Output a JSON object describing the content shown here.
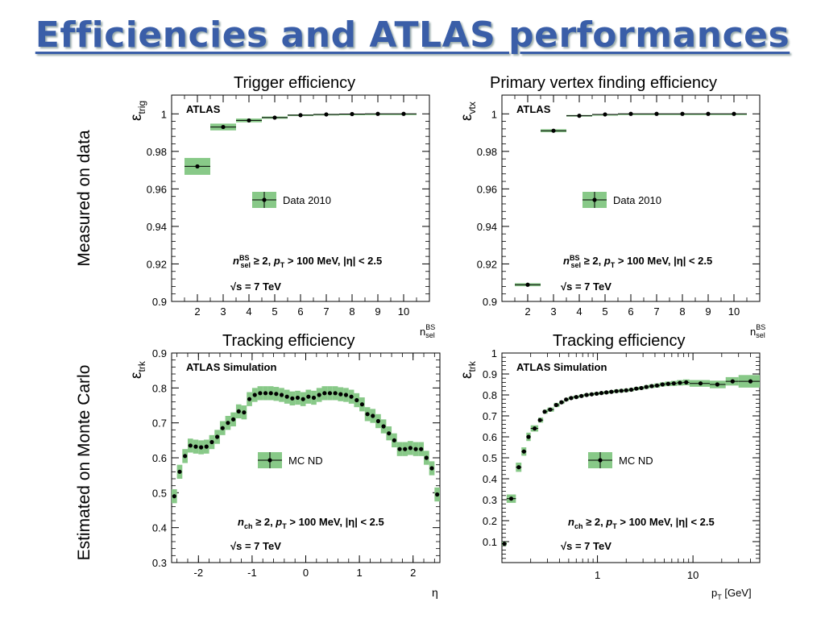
{
  "slide": {
    "title": "Efficiencies and ATLAS performances",
    "row_labels": [
      "Measured on data",
      "Estimated on Monte Carlo"
    ],
    "panel_titles": [
      "Trigger efficiency",
      "Primary vertex  finding efficiency",
      "Tracking efficiency",
      "Tracking efficiency"
    ]
  },
  "colors": {
    "band": "#88c988",
    "title": "#3a5ea8"
  },
  "chart_data": [
    {
      "type": "scatter",
      "title": "Trigger efficiency",
      "ylabel": "ε_trig",
      "xlabel": "n_sel^BS",
      "stamp": "ATLAS",
      "legend": "Data 2010",
      "legend_position": "center",
      "cuts": "n_sel^BS ≥ 2, p_T > 100 MeV, |η| < 2.5",
      "energy": "√s = 7 TeV",
      "xlim": [
        1,
        11
      ],
      "ylim": [
        0.9,
        1.01
      ],
      "xticks": [
        2,
        3,
        4,
        5,
        6,
        7,
        8,
        9,
        10
      ],
      "yticks": [
        0.9,
        0.92,
        0.94,
        0.96,
        0.98,
        1
      ],
      "ytick_labels": [
        "0.9",
        "0.92",
        "0.94",
        "0.96",
        "0.98",
        "1"
      ],
      "points": [
        {
          "x": 2,
          "xlo": 1.5,
          "xhi": 2.5,
          "y": 0.972,
          "band": 0.0045
        },
        {
          "x": 3,
          "xlo": 2.5,
          "xhi": 3.5,
          "y": 0.993,
          "band": 0.0018
        },
        {
          "x": 4,
          "xlo": 3.5,
          "xhi": 4.5,
          "y": 0.9965,
          "band": 0.001
        },
        {
          "x": 5,
          "xlo": 4.5,
          "xhi": 5.5,
          "y": 0.998,
          "band": 0.0006
        },
        {
          "x": 6,
          "xlo": 5.5,
          "xhi": 6.5,
          "y": 0.9993,
          "band": 0.0004
        },
        {
          "x": 7,
          "xlo": 6.5,
          "xhi": 7.5,
          "y": 0.9997,
          "band": 0.0003
        },
        {
          "x": 8,
          "xlo": 7.5,
          "xhi": 8.5,
          "y": 0.9999,
          "band": 0.0002
        },
        {
          "x": 9,
          "xlo": 8.5,
          "xhi": 9.5,
          "y": 1.0,
          "band": 0.0002
        },
        {
          "x": 10,
          "xlo": 9.5,
          "xhi": 10.5,
          "y": 1.0,
          "band": 0.0002
        }
      ]
    },
    {
      "type": "scatter",
      "title": "Primary vertex  finding efficiency",
      "ylabel": "ε_vtx",
      "xlabel": "n_sel^BS",
      "stamp": "ATLAS",
      "legend": "Data 2010",
      "legend_position": "center",
      "cuts": "n_sel^BS ≥ 2, p_T > 100 MeV, |η| < 2.5",
      "energy": "√s = 7 TeV",
      "xlim": [
        1,
        11
      ],
      "ylim": [
        0.9,
        1.01
      ],
      "xticks": [
        2,
        3,
        4,
        5,
        6,
        7,
        8,
        9,
        10
      ],
      "yticks": [
        0.9,
        0.92,
        0.94,
        0.96,
        0.98,
        1
      ],
      "ytick_labels": [
        "0.9",
        "0.92",
        "0.94",
        "0.96",
        "0.98",
        "1"
      ],
      "points": [
        {
          "x": 2,
          "xlo": 1.5,
          "xhi": 2.5,
          "y": 0.9089,
          "band": 0.0008
        },
        {
          "x": 3,
          "xlo": 2.5,
          "xhi": 3.5,
          "y": 0.991,
          "band": 0.0008
        },
        {
          "x": 4,
          "xlo": 3.5,
          "xhi": 4.5,
          "y": 0.999,
          "band": 0.0004
        },
        {
          "x": 5,
          "xlo": 4.5,
          "xhi": 5.5,
          "y": 0.9997,
          "band": 0.0002
        },
        {
          "x": 6,
          "xlo": 5.5,
          "xhi": 6.5,
          "y": 1.0,
          "band": 0.0002
        },
        {
          "x": 7,
          "xlo": 6.5,
          "xhi": 7.5,
          "y": 1.0,
          "band": 0.0002
        },
        {
          "x": 8,
          "xlo": 7.5,
          "xhi": 8.5,
          "y": 1.0,
          "band": 0.0002
        },
        {
          "x": 9,
          "xlo": 8.5,
          "xhi": 9.5,
          "y": 1.0,
          "band": 0.0002
        },
        {
          "x": 10,
          "xlo": 9.5,
          "xhi": 10.5,
          "y": 1.0,
          "band": 0.0002
        }
      ]
    },
    {
      "type": "scatter",
      "title": "Tracking efficiency",
      "ylabel": "ε_trk",
      "xlabel": "η",
      "stamp": "ATLAS Simulation",
      "legend": "MC ND",
      "legend_position": "center",
      "cuts": "n_ch ≥ 2, p_T > 100 MeV, |η| < 2.5",
      "energy": "√s = 7 TeV",
      "xlim": [
        -2.5,
        2.5
      ],
      "ylim": [
        0.3,
        0.9
      ],
      "xticks": [
        -2,
        -1,
        0,
        1,
        2
      ],
      "yticks": [
        0.3,
        0.4,
        0.5,
        0.6,
        0.7,
        0.8,
        0.9
      ],
      "ytick_labels": [
        "0.3",
        "0.4",
        "0.5",
        "0.6",
        "0.7",
        "0.8",
        "0.9"
      ],
      "bin_width": 0.1,
      "band_half_height": 0.02,
      "x": [
        -2.45,
        -2.35,
        -2.25,
        -2.15,
        -2.05,
        -1.95,
        -1.85,
        -1.75,
        -1.65,
        -1.55,
        -1.45,
        -1.35,
        -1.25,
        -1.15,
        -1.05,
        -0.95,
        -0.85,
        -0.75,
        -0.65,
        -0.55,
        -0.45,
        -0.35,
        -0.25,
        -0.15,
        -0.05,
        0.05,
        0.15,
        0.25,
        0.35,
        0.45,
        0.55,
        0.65,
        0.75,
        0.85,
        0.95,
        1.05,
        1.15,
        1.25,
        1.35,
        1.45,
        1.55,
        1.65,
        1.75,
        1.85,
        1.95,
        2.05,
        2.15,
        2.25,
        2.35,
        2.45
      ],
      "y": [
        0.49,
        0.56,
        0.605,
        0.635,
        0.632,
        0.63,
        0.632,
        0.645,
        0.66,
        0.685,
        0.7,
        0.71,
        0.733,
        0.73,
        0.768,
        0.78,
        0.785,
        0.785,
        0.785,
        0.783,
        0.78,
        0.775,
        0.77,
        0.772,
        0.768,
        0.775,
        0.772,
        0.78,
        0.785,
        0.785,
        0.785,
        0.782,
        0.78,
        0.775,
        0.765,
        0.753,
        0.725,
        0.72,
        0.705,
        0.69,
        0.67,
        0.65,
        0.625,
        0.625,
        0.628,
        0.625,
        0.625,
        0.6,
        0.57,
        0.495
      ]
    },
    {
      "type": "scatter",
      "title": "Tracking efficiency",
      "ylabel": "ε_trk",
      "xlabel": "p_T [GeV]",
      "stamp": "ATLAS Simulation",
      "legend": "MC ND",
      "legend_position": "center",
      "cuts": "n_ch ≥ 2, p_T > 100 MeV, |η| < 2.5",
      "energy": "√s = 7 TeV",
      "xscale": "log",
      "xlim": [
        0.1,
        50
      ],
      "ylim": [
        0,
        1
      ],
      "xticks": [
        1,
        10
      ],
      "yticks": [
        0,
        0.1,
        0.2,
        0.3,
        0.4,
        0.5,
        0.6,
        0.7,
        0.8,
        0.9,
        1
      ],
      "ytick_labels": [
        "",
        "0.1",
        "0.2",
        "0.3",
        "0.4",
        "0.5",
        "0.6",
        "0.7",
        "0.8",
        "0.9",
        "1"
      ],
      "points": [
        {
          "x": 0.106,
          "xlo": 0.1,
          "xhi": 0.112,
          "y": 0.09,
          "band": 0.01
        },
        {
          "x": 0.125,
          "xlo": 0.112,
          "xhi": 0.14,
          "y": 0.305,
          "band": 0.02
        },
        {
          "x": 0.15,
          "xlo": 0.14,
          "xhi": 0.16,
          "y": 0.455,
          "band": 0.022
        },
        {
          "x": 0.17,
          "xlo": 0.16,
          "xhi": 0.18,
          "y": 0.53,
          "band": 0.02
        },
        {
          "x": 0.19,
          "xlo": 0.18,
          "xhi": 0.2,
          "y": 0.6,
          "band": 0.02
        },
        {
          "x": 0.22,
          "xlo": 0.2,
          "xhi": 0.24,
          "y": 0.64,
          "band": 0.015
        },
        {
          "x": 0.25,
          "xlo": 0.24,
          "xhi": 0.27,
          "y": 0.68,
          "band": 0.012
        },
        {
          "x": 0.28,
          "xlo": 0.27,
          "xhi": 0.3,
          "y": 0.72,
          "band": 0.01
        },
        {
          "x": 0.32,
          "xlo": 0.3,
          "xhi": 0.35,
          "y": 0.73,
          "band": 0.01
        },
        {
          "x": 0.37,
          "xlo": 0.35,
          "xhi": 0.4,
          "y": 0.752,
          "band": 0.01
        },
        {
          "x": 0.42,
          "xlo": 0.4,
          "xhi": 0.45,
          "y": 0.765,
          "band": 0.008
        },
        {
          "x": 0.47,
          "xlo": 0.45,
          "xhi": 0.5,
          "y": 0.778,
          "band": 0.008
        },
        {
          "x": 0.53,
          "xlo": 0.5,
          "xhi": 0.56,
          "y": 0.785,
          "band": 0.007
        },
        {
          "x": 0.6,
          "xlo": 0.56,
          "xhi": 0.64,
          "y": 0.79,
          "band": 0.007
        },
        {
          "x": 0.68,
          "xlo": 0.64,
          "xhi": 0.72,
          "y": 0.795,
          "band": 0.007
        },
        {
          "x": 0.77,
          "xlo": 0.72,
          "xhi": 0.82,
          "y": 0.8,
          "band": 0.007
        },
        {
          "x": 0.87,
          "xlo": 0.82,
          "xhi": 0.92,
          "y": 0.803,
          "band": 0.007
        },
        {
          "x": 0.98,
          "xlo": 0.92,
          "xhi": 1.04,
          "y": 0.806,
          "band": 0.007
        },
        {
          "x": 1.1,
          "xlo": 1.04,
          "xhi": 1.17,
          "y": 0.809,
          "band": 0.007
        },
        {
          "x": 1.24,
          "xlo": 1.17,
          "xhi": 1.32,
          "y": 0.812,
          "band": 0.007
        },
        {
          "x": 1.4,
          "xlo": 1.32,
          "xhi": 1.49,
          "y": 0.815,
          "band": 0.007
        },
        {
          "x": 1.58,
          "xlo": 1.49,
          "xhi": 1.68,
          "y": 0.818,
          "band": 0.008
        },
        {
          "x": 1.78,
          "xlo": 1.68,
          "xhi": 1.9,
          "y": 0.82,
          "band": 0.008
        },
        {
          "x": 2.0,
          "xlo": 1.9,
          "xhi": 2.14,
          "y": 0.822,
          "band": 0.008
        },
        {
          "x": 2.26,
          "xlo": 2.14,
          "xhi": 2.41,
          "y": 0.825,
          "band": 0.008
        },
        {
          "x": 2.55,
          "xlo": 2.41,
          "xhi": 2.72,
          "y": 0.83,
          "band": 0.008
        },
        {
          "x": 2.88,
          "xlo": 2.72,
          "xhi": 3.07,
          "y": 0.833,
          "band": 0.008
        },
        {
          "x": 3.25,
          "xlo": 3.07,
          "xhi": 3.47,
          "y": 0.838,
          "band": 0.009
        },
        {
          "x": 3.7,
          "xlo": 3.47,
          "xhi": 3.95,
          "y": 0.842,
          "band": 0.009
        },
        {
          "x": 4.2,
          "xlo": 3.95,
          "xhi": 4.5,
          "y": 0.845,
          "band": 0.01
        },
        {
          "x": 4.8,
          "xlo": 4.5,
          "xhi": 5.1,
          "y": 0.85,
          "band": 0.01
        },
        {
          "x": 5.5,
          "xlo": 5.1,
          "xhi": 5.9,
          "y": 0.853,
          "band": 0.011
        },
        {
          "x": 6.3,
          "xlo": 5.9,
          "xhi": 6.8,
          "y": 0.855,
          "band": 0.012
        },
        {
          "x": 7.3,
          "xlo": 6.8,
          "xhi": 7.9,
          "y": 0.858,
          "band": 0.013
        },
        {
          "x": 8.5,
          "xlo": 7.9,
          "xhi": 9.2,
          "y": 0.86,
          "band": 0.014
        },
        {
          "x": 12,
          "xlo": 9.2,
          "xhi": 15,
          "y": 0.855,
          "band": 0.016
        },
        {
          "x": 18,
          "xlo": 15,
          "xhi": 22,
          "y": 0.85,
          "band": 0.018
        },
        {
          "x": 26,
          "xlo": 22,
          "xhi": 30,
          "y": 0.865,
          "band": 0.02
        },
        {
          "x": 40,
          "xlo": 30,
          "xhi": 50,
          "y": 0.865,
          "band": 0.03
        }
      ]
    }
  ]
}
